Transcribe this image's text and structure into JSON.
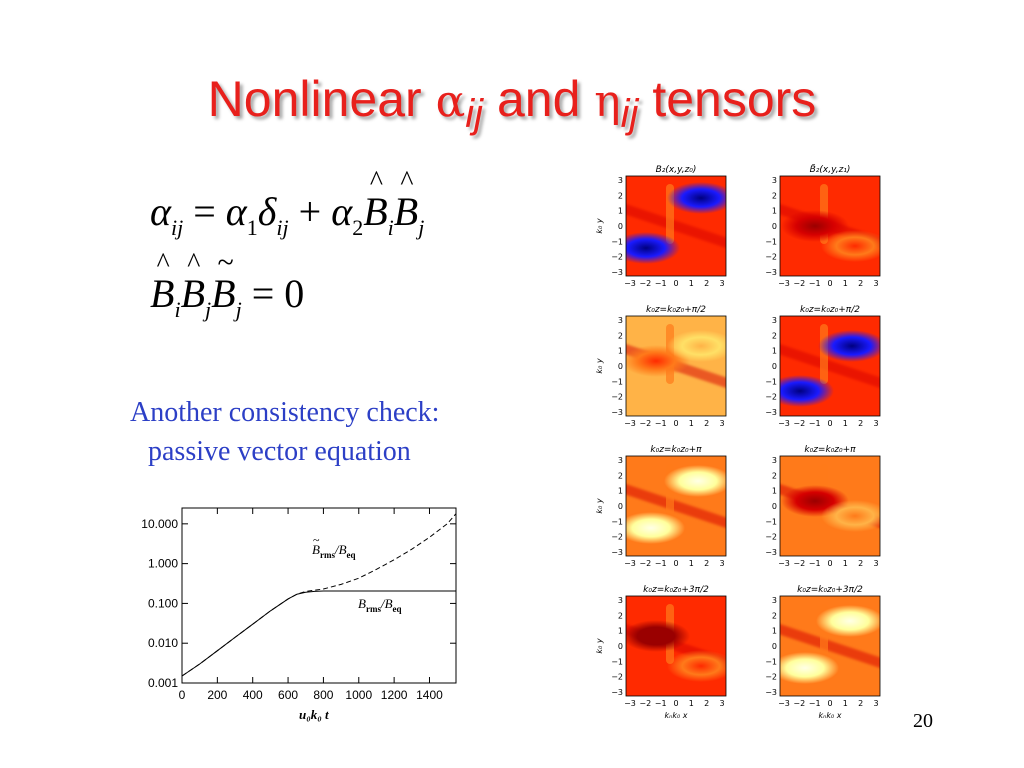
{
  "title": {
    "prefix": "Nonlinear ",
    "alpha": "α",
    "alpha_sub": "ij",
    "middle": " and ",
    "eta": "η",
    "eta_sub": "ij",
    "suffix": " tensors",
    "color": "#e8201c"
  },
  "equations": {
    "eq1": {
      "alpha": "α",
      "sub_ij": "ij",
      "equals": " = ",
      "alpha1": "α",
      "sub_1": "1",
      "delta": "δ",
      "sub_ij2": "ij",
      "plus": " + ",
      "alpha2": "α",
      "sub_2": "2",
      "B_i": "B",
      "sub_i": "i",
      "B_j": "B",
      "sub_j": "j"
    },
    "eq2": {
      "B_i": "B",
      "sub_i": "i",
      "B_j": "B",
      "sub_j": "j",
      "Bt_j": "B",
      "sub_j2": "j",
      "equals": " = ",
      "zero": "0"
    }
  },
  "note": {
    "line1": "Another consistency check:",
    "line2": "passive vector equation",
    "color": "#2c3fc6"
  },
  "growth_chart": {
    "type": "line",
    "y_scale": "log",
    "xlim": [
      0,
      1550
    ],
    "ylim": [
      0.001,
      25
    ],
    "x_ticks": [
      0,
      200,
      400,
      600,
      800,
      1000,
      1200,
      1400
    ],
    "y_ticks": [
      {
        "value": 0.001,
        "label": "0.001"
      },
      {
        "value": 0.01,
        "label": "0.010"
      },
      {
        "value": 0.1,
        "label": "0.100"
      },
      {
        "value": 1,
        "label": "1.000"
      },
      {
        "value": 10,
        "label": "10.000"
      }
    ],
    "xlabel": "u₀k₀  t",
    "series": [
      {
        "name": "B̃rms/Beq",
        "label_main": "B",
        "label_sub": "rms",
        "label_den": "/B",
        "label_den_sub": "eq",
        "style": "dashed",
        "x": [
          0,
          100,
          200,
          300,
          400,
          500,
          600,
          650,
          700,
          750,
          800,
          900,
          1000,
          1100,
          1200,
          1300,
          1400,
          1500,
          1550
        ],
        "y": [
          0.0015,
          0.003,
          0.0065,
          0.014,
          0.03,
          0.065,
          0.13,
          0.17,
          0.2,
          0.215,
          0.23,
          0.3,
          0.43,
          0.72,
          1.25,
          2.3,
          4.6,
          10,
          18
        ]
      },
      {
        "name": "Brms/Beq",
        "label_main": "B",
        "label_sub": "rms",
        "label_den": "/B",
        "label_den_sub": "eq",
        "style": "solid",
        "x": [
          0,
          100,
          200,
          300,
          400,
          500,
          600,
          650,
          700,
          750,
          800,
          900,
          1000,
          1200,
          1400,
          1550
        ],
        "y": [
          0.0015,
          0.003,
          0.0065,
          0.014,
          0.03,
          0.065,
          0.13,
          0.17,
          0.19,
          0.2,
          0.205,
          0.205,
          0.205,
          0.205,
          0.205,
          0.205
        ]
      }
    ]
  },
  "panels": {
    "axis_ticks": [
      "3",
      "2",
      "1",
      "0",
      "−1",
      "−2",
      "−3"
    ],
    "x_ticks": [
      "−3",
      "−2",
      "−1",
      "0",
      "1",
      "2",
      "3"
    ],
    "ylabel": "k₀ y",
    "xlabel": "kₙk₀ x",
    "titles": [
      "B₂(x,y,z₀)",
      "B̃₂(x,y,z₁)",
      "k₀z=k₀z₀+π/2",
      "k₀z=k₀z₀+π/2",
      "k₀z=k₀z₀+π",
      "k₀z=k₀z₀+π",
      "k₀z=k₀z₀+3π/2",
      "k₀z=k₀z₀+3π/2"
    ],
    "colors": [
      "#9a0000",
      "#d60000",
      "#ff2a00",
      "#ff7a1a",
      "#ffb347",
      "#ffe066",
      "#ffff9c",
      "#ffffe6",
      "#1a1aff",
      "#000080"
    ]
  },
  "page_number": "20"
}
